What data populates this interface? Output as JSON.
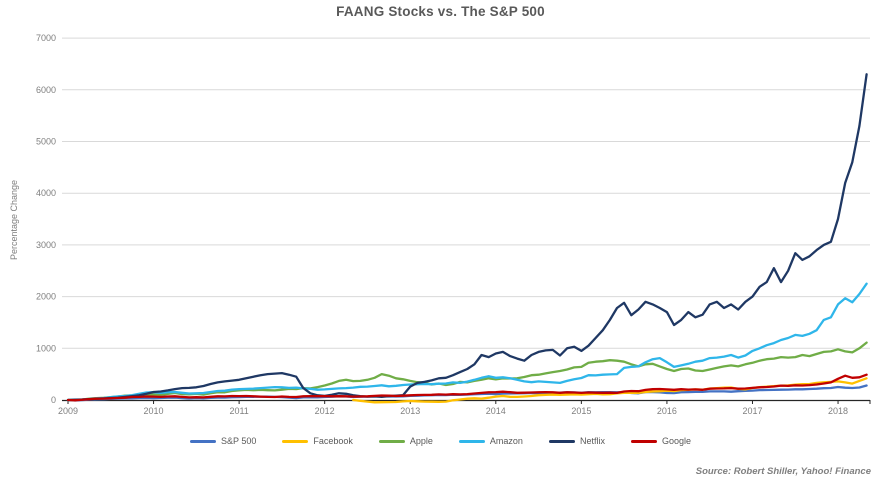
{
  "source": "Source: Robert Shiller, Yahoo! Finance",
  "chart_data": {
    "type": "line",
    "title": "FAANG Stocks vs. The S&P 500",
    "xlabel": "",
    "ylabel": "Percentage Change",
    "ylim": [
      0,
      7000
    ],
    "yticks": [
      0,
      1000,
      2000,
      3000,
      4000,
      5000,
      6000,
      7000
    ],
    "x_tick_years": [
      2009,
      2010,
      2011,
      2012,
      2013,
      2014,
      2015,
      2016,
      2017,
      2018
    ],
    "grid": "horizontal",
    "legend_position": "bottom",
    "points_per_year": 12,
    "series": [
      {
        "name": "S&P 500",
        "color": "#4472c4",
        "start": 2009.0,
        "values": [
          0,
          -10,
          -2,
          8,
          14,
          16,
          24,
          28,
          32,
          30,
          36,
          38,
          35,
          38,
          45,
          47,
          36,
          29,
          37,
          31,
          42,
          46,
          46,
          54,
          57,
          61,
          61,
          65,
          63,
          60,
          57,
          47,
          37,
          52,
          51,
          52,
          58,
          64,
          69,
          68,
          58,
          63,
          65,
          68,
          71,
          68,
          68,
          70,
          80,
          84,
          89,
          93,
          97,
          94,
          103,
          99,
          104,
          112,
          117,
          122,
          115,
          124,
          126,
          127,
          131,
          136,
          132,
          140,
          137,
          144,
          149,
          147,
          139,
          152,
          148,
          150,
          153,
          148,
          153,
          136,
          130,
          152,
          153,
          148,
          135,
          134,
          151,
          152,
          156,
          156,
          167,
          167,
          166,
          161,
          171,
          176,
          182,
          192,
          193,
          195,
          199,
          201,
          207,
          207,
          212,
          219,
          228,
          232,
          251,
          238,
          232,
          242,
          280
        ]
      },
      {
        "name": "Facebook",
        "color": "#ffc000",
        "start": 2012.333,
        "values": [
          0,
          -15,
          -30,
          -45,
          -43,
          -40,
          -38,
          -28,
          -20,
          -25,
          -30,
          -32,
          -35,
          -30,
          -5,
          10,
          25,
          32,
          28,
          45,
          65,
          78,
          62,
          60,
          68,
          78,
          92,
          98,
          105,
          98,
          104,
          108,
          105,
          112,
          118,
          110,
          112,
          128,
          140,
          138,
          140,
          155,
          165,
          170,
          180,
          172,
          192,
          198,
          205,
          200,
          222,
          230,
          238,
          242,
          215,
          205,
          232,
          250,
          258,
          268,
          278,
          282,
          295,
          305,
          310,
          330,
          342,
          350,
          360,
          340,
          318,
          370,
          420
        ]
      },
      {
        "name": "Apple",
        "color": "#70ad47",
        "start": 2009.0,
        "values": [
          0,
          0,
          10,
          25,
          35,
          42,
          55,
          68,
          85,
          88,
          95,
          110,
          105,
          100,
          120,
          135,
          115,
          110,
          118,
          105,
          130,
          150,
          148,
          175,
          185,
          195,
          190,
          195,
          190,
          185,
          200,
          215,
          210,
          230,
          225,
          250,
          280,
          320,
          370,
          390,
          365,
          370,
          390,
          430,
          500,
          470,
          420,
          400,
          370,
          345,
          335,
          300,
          320,
          290,
          310,
          350,
          340,
          370,
          390,
          420,
          400,
          420,
          415,
          420,
          445,
          480,
          490,
          515,
          540,
          560,
          590,
          630,
          640,
          720,
          740,
          750,
          770,
          760,
          740,
          690,
          650,
          690,
          700,
          650,
          600,
          560,
          600,
          610,
          570,
          560,
          590,
          620,
          650,
          670,
          650,
          690,
          720,
          760,
          790,
          800,
          830,
          820,
          830,
          870,
          850,
          890,
          930,
          940,
          980,
          940,
          920,
          1000,
          1110
        ]
      },
      {
        "name": "Amazon",
        "color": "#2fb6ea",
        "start": 2009.0,
        "values": [
          0,
          5,
          12,
          20,
          30,
          38,
          55,
          70,
          78,
          95,
          120,
          145,
          150,
          140,
          150,
          155,
          140,
          125,
          130,
          135,
          155,
          175,
          180,
          200,
          210,
          215,
          220,
          230,
          240,
          250,
          245,
          235,
          240,
          225,
          215,
          200,
          205,
          215,
          225,
          230,
          240,
          255,
          260,
          270,
          285,
          265,
          275,
          290,
          300,
          305,
          310,
          305,
          315,
          320,
          340,
          330,
          355,
          390,
          430,
          460,
          430,
          440,
          420,
          390,
          360,
          345,
          360,
          350,
          340,
          330,
          370,
          400,
          425,
          480,
          475,
          490,
          495,
          500,
          620,
          640,
          650,
          730,
          790,
          810,
          730,
          640,
          670,
          700,
          740,
          760,
          810,
          820,
          840,
          870,
          820,
          860,
          950,
          1000,
          1060,
          1100,
          1160,
          1200,
          1260,
          1240,
          1280,
          1350,
          1550,
          1600,
          1850,
          1970,
          1890,
          2050,
          2250
        ]
      },
      {
        "name": "Netflix",
        "color": "#1f3864",
        "start": 2009.0,
        "values": [
          0,
          5,
          10,
          18,
          25,
          30,
          38,
          45,
          60,
          75,
          90,
          120,
          155,
          165,
          185,
          210,
          230,
          235,
          245,
          270,
          310,
          340,
          360,
          375,
          390,
          420,
          450,
          480,
          500,
          510,
          520,
          490,
          450,
          230,
          130,
          90,
          80,
          100,
          130,
          120,
          90,
          75,
          65,
          70,
          60,
          75,
          85,
          95,
          260,
          330,
          350,
          380,
          420,
          430,
          480,
          540,
          600,
          690,
          870,
          830,
          900,
          930,
          850,
          800,
          760,
          870,
          930,
          960,
          970,
          860,
          1000,
          1030,
          950,
          1050,
          1200,
          1350,
          1550,
          1780,
          1880,
          1640,
          1750,
          1900,
          1850,
          1780,
          1700,
          1450,
          1550,
          1700,
          1600,
          1650,
          1850,
          1900,
          1780,
          1850,
          1750,
          1900,
          2000,
          2190,
          2280,
          2550,
          2280,
          2500,
          2840,
          2710,
          2780,
          2900,
          3000,
          3060,
          3500,
          4200,
          4600,
          5300,
          6300
        ]
      },
      {
        "name": "Google",
        "color": "#c00000",
        "start": 2009.0,
        "values": [
          0,
          -5,
          5,
          15,
          25,
          28,
          32,
          38,
          45,
          58,
          60,
          68,
          65,
          60,
          68,
          72,
          60,
          50,
          55,
          50,
          62,
          72,
          70,
          78,
          75,
          78,
          72,
          65,
          60,
          58,
          68,
          60,
          58,
          72,
          76,
          74,
          76,
          72,
          74,
          72,
          65,
          68,
          72,
          80,
          88,
          85,
          78,
          84,
          90,
          96,
          98,
          100,
          108,
          105,
          112,
          108,
          115,
          125,
          138,
          148,
          152,
          160,
          150,
          140,
          142,
          145,
          148,
          152,
          148,
          140,
          148,
          145,
          138,
          145,
          142,
          140,
          142,
          138,
          165,
          175,
          170,
          195,
          208,
          212,
          205,
          198,
          208,
          202,
          205,
          198,
          218,
          222,
          225,
          230,
          218,
          222,
          235,
          245,
          252,
          262,
          278,
          272,
          285,
          280,
          288,
          300,
          320,
          340,
          410,
          470,
          430,
          440,
          490
        ]
      }
    ]
  }
}
